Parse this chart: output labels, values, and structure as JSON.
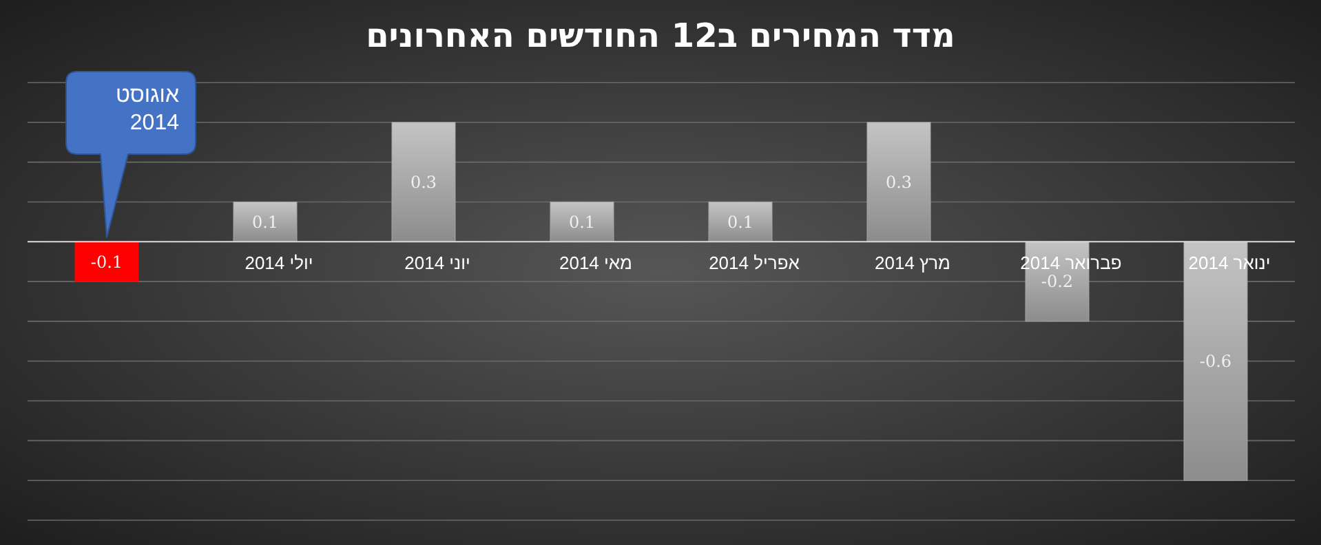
{
  "chart_data": {
    "type": "bar",
    "title": "מדד המחירים ב12 החודשים האחרונים",
    "categories": [
      null,
      "יולי 2014",
      "יוני 2014",
      "מאי 2014",
      "אפריל 2014",
      "מרץ 2014",
      "פברואר 2014",
      "ינואר 2014"
    ],
    "values": [
      -0.1,
      0.1,
      0.3,
      0.1,
      0.1,
      0.3,
      -0.2,
      -0.6
    ],
    "colors": [
      "#ff0000",
      "#a6a6a6",
      "#a6a6a6",
      "#a6a6a6",
      "#a6a6a6",
      "#a6a6a6",
      "#a6a6a6",
      "#a6a6a6"
    ],
    "ylim": [
      -0.7,
      0.4
    ],
    "yticks": [
      {
        "value": -0.7,
        "label": null
      },
      {
        "value": -0.6,
        "label": null
      },
      {
        "value": -0.5,
        "label": null
      },
      {
        "value": -0.4,
        "label": null
      },
      {
        "value": -0.3,
        "label": null
      },
      {
        "value": -0.2,
        "label": null
      },
      {
        "value": -0.1,
        "label": null
      },
      {
        "value": 0,
        "label": null
      },
      {
        "value": 0.1,
        "label": null
      },
      {
        "value": 0.2,
        "label": null
      },
      {
        "value": 0.3,
        "label": null
      },
      {
        "value": 0.4,
        "label": null
      }
    ],
    "grid": "y",
    "tick_labels": "x",
    "data_labels": true,
    "annotations": [
      "אוגוסט 2014"
    ]
  }
}
